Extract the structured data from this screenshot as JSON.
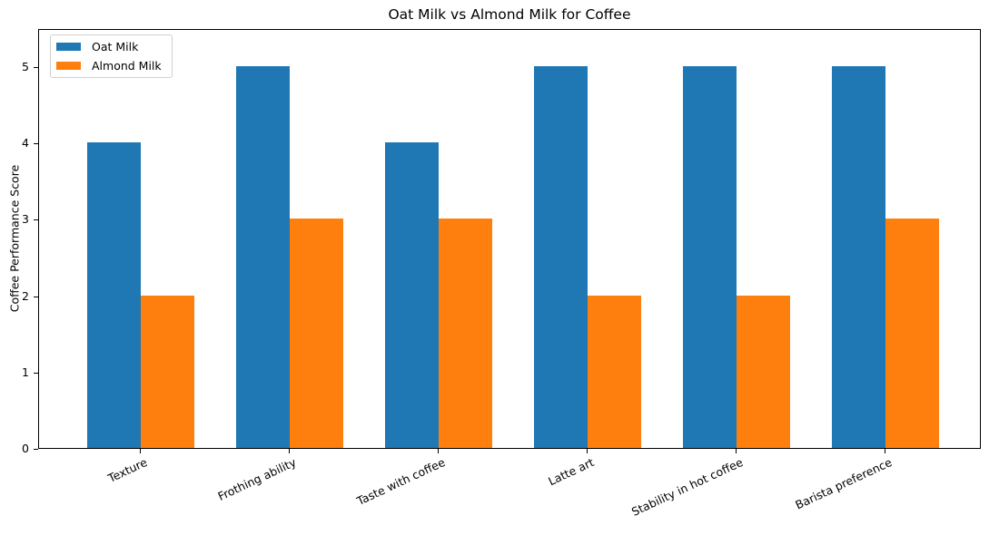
{
  "chart_data": {
    "type": "bar",
    "title": "Oat Milk vs Almond Milk for Coffee",
    "xlabel": "",
    "ylabel": "Coffee Performance Score",
    "categories": [
      "Texture",
      "Frothing ability",
      "Taste with coffee",
      "Latte art",
      "Stability in hot coffee",
      "Barista preference"
    ],
    "series": [
      {
        "name": "Oat Milk",
        "color": "#1f77b4",
        "values": [
          4,
          5,
          4,
          5,
          5,
          5
        ]
      },
      {
        "name": "Almond Milk",
        "color": "#ff7f0e",
        "values": [
          2,
          3,
          3,
          2,
          2,
          3
        ]
      }
    ],
    "ylim": [
      0,
      5.5
    ],
    "yticks": [
      0,
      1,
      2,
      3,
      4,
      5
    ],
    "grid": false,
    "legend_position": "upper left",
    "xtick_rotation": -25
  }
}
